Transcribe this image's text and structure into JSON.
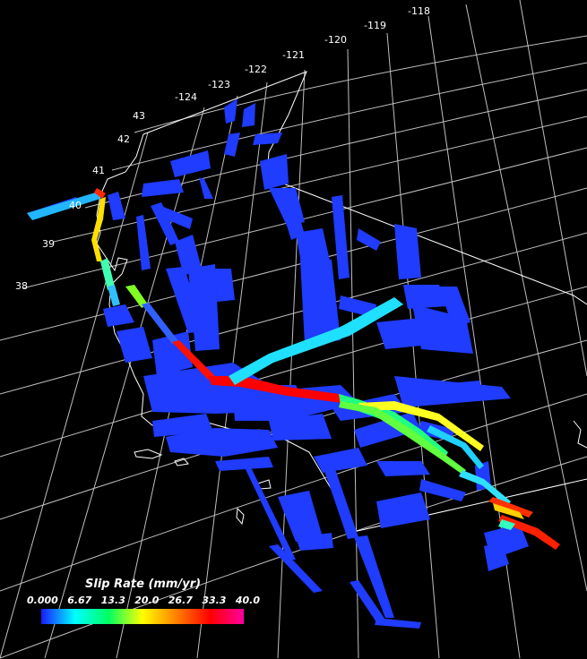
{
  "map": {
    "longitude_labels": [
      "-124",
      "-123",
      "-122",
      "-121",
      "-120",
      "-119",
      "-118"
    ],
    "latitude_labels": [
      "43",
      "42",
      "41",
      "40",
      "39",
      "38"
    ]
  },
  "legend": {
    "title": "Slip Rate (mm/yr)",
    "ticks": [
      "0.000",
      "6.67",
      "13.3",
      "20.0",
      "26.7",
      "33.3",
      "40.0"
    ],
    "colors": [
      "#1a1aff",
      "#00ffff",
      "#00ff60",
      "#ffff00",
      "#ff8000",
      "#ff0000",
      "#ff00a0"
    ]
  }
}
